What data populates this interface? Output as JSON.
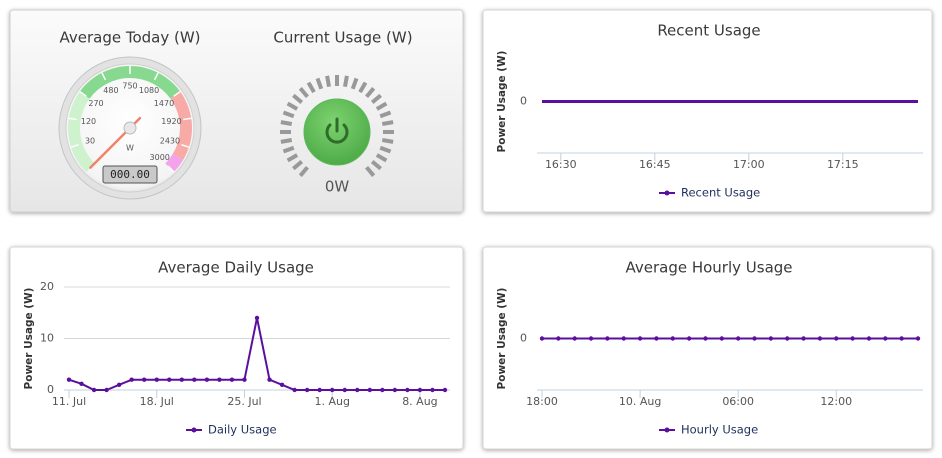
{
  "chart_data": [
    {
      "type": "gauge",
      "title": "Average Today (W)",
      "value": 0,
      "value_label": "000.00",
      "unit": "W",
      "lim": [
        0,
        3000
      ],
      "scale": "sqrt",
      "ticks": [
        30,
        120,
        270,
        480,
        750,
        1080,
        1470,
        1920,
        2430,
        3000
      ],
      "bands": [
        {
          "from": 0,
          "to": 270,
          "color": "#cdf2cd"
        },
        {
          "from": 270,
          "to": 1470,
          "color": "#86d98e"
        },
        {
          "from": 1470,
          "to": 2700,
          "color": "#f7aaa6"
        },
        {
          "from": 2700,
          "to": 3000,
          "color": "#f2a3ec"
        }
      ],
      "needle_color": "#f0826a"
    },
    {
      "type": "power",
      "title": "Current Usage (W)",
      "value": 0,
      "value_label": "0W",
      "color": "#5cb85c"
    },
    {
      "type": "line",
      "title": "Recent Usage",
      "y_label": "Power Usage (W)",
      "x": [
        "16:27",
        "16:30",
        "16:33",
        "16:36",
        "16:39",
        "16:42",
        "16:45",
        "16:48",
        "16:51",
        "16:54",
        "16:57",
        "17:00",
        "17:03",
        "17:06",
        "17:09",
        "17:12",
        "17:15",
        "17:18",
        "17:21",
        "17:24",
        "17:27"
      ],
      "xticks": [
        "16:30",
        "16:45",
        "17:00",
        "17:15"
      ],
      "ylim": [
        -1,
        1
      ],
      "yticks": [
        0
      ],
      "grid": false,
      "markers": false,
      "series": [
        {
          "name": "Recent Usage",
          "color": "#5b0f9e",
          "values": [
            0,
            0,
            0,
            0,
            0,
            0,
            0,
            0,
            0,
            0,
            0,
            0,
            0,
            0,
            0,
            0,
            0,
            0,
            0,
            0,
            0
          ]
        }
      ]
    },
    {
      "type": "line",
      "title": "Average Daily Usage",
      "y_label": "Power Usage (W)",
      "x": [
        "11. Jul",
        "12. Jul",
        "13. Jul",
        "14. Jul",
        "15. Jul",
        "16. Jul",
        "17. Jul",
        "18. Jul",
        "19. Jul",
        "20. Jul",
        "21. Jul",
        "22. Jul",
        "23. Jul",
        "24. Jul",
        "25. Jul",
        "26. Jul",
        "27. Jul",
        "28. Jul",
        "29. Jul",
        "30. Jul",
        "31. Jul",
        "1. Aug",
        "2. Aug",
        "3. Aug",
        "4. Aug",
        "5. Aug",
        "6. Aug",
        "7. Aug",
        "8. Aug",
        "9. Aug",
        "10. Aug"
      ],
      "xticks": [
        "11. Jul",
        "18. Jul",
        "25. Jul",
        "1. Aug",
        "8. Aug"
      ],
      "ylim": [
        0,
        20
      ],
      "yticks": [
        0,
        10,
        20
      ],
      "grid": true,
      "markers": true,
      "series": [
        {
          "name": "Daily Usage",
          "color": "#5b0f9e",
          "values": [
            2,
            1.2,
            0,
            0,
            1,
            2,
            2,
            2,
            2,
            2,
            2,
            2,
            2,
            2,
            2,
            14,
            2,
            1,
            0,
            0,
            0,
            0,
            0,
            0,
            0,
            0,
            0,
            0,
            0,
            0,
            0
          ]
        }
      ]
    },
    {
      "type": "line",
      "title": "Average Hourly Usage",
      "y_label": "Power Usage (W)",
      "x": [
        "18:00",
        "19:00",
        "20:00",
        "21:00",
        "22:00",
        "23:00",
        "10. Aug",
        "01:00",
        "02:00",
        "03:00",
        "04:00",
        "05:00",
        "06:00",
        "07:00",
        "08:00",
        "09:00",
        "10:00",
        "11:00",
        "12:00",
        "13:00",
        "14:00",
        "15:00",
        "16:00",
        "17:00"
      ],
      "xticks": [
        "18:00",
        "10. Aug",
        "06:00",
        "12:00"
      ],
      "ylim": [
        -1,
        1
      ],
      "yticks": [
        0
      ],
      "grid": false,
      "markers": true,
      "series": [
        {
          "name": "Hourly Usage",
          "color": "#5b0f9e",
          "values": [
            0,
            0,
            0,
            0,
            0,
            0,
            0,
            0,
            0,
            0,
            0,
            0,
            0,
            0,
            0,
            0,
            0,
            0,
            0,
            0,
            0,
            0,
            0,
            0
          ]
        }
      ]
    }
  ]
}
